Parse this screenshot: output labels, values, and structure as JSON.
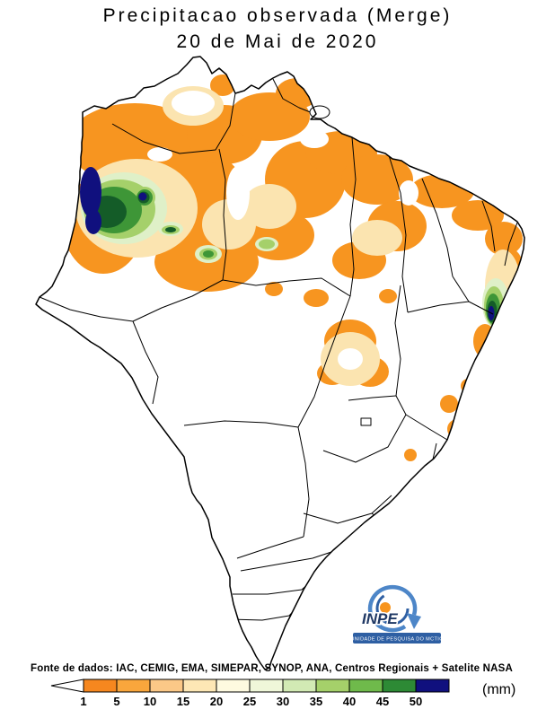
{
  "title": {
    "line1": "Precipitacao observada (Merge)",
    "line2": "20 de Mai de 2020"
  },
  "logo": {
    "name": "INPE",
    "subtitle": "UNIDADE DE PESQUISA DO MCTIC"
  },
  "source_line": "Fonte de dados: IAC, CEMIG, EMA, SIMEPAR, SYNOP, ANA, Centros Regionais + Satelite NASA",
  "legend": {
    "unit": "(mm)",
    "ticks": [
      "1",
      "5",
      "10",
      "15",
      "20",
      "25",
      "30",
      "35",
      "40",
      "45",
      "50"
    ],
    "colors": [
      "#F6871F",
      "#F9A63C",
      "#FBC887",
      "#FDE7B5",
      "#FEFAE0",
      "#EFF7D9",
      "#D2EAB4",
      "#A5D06A",
      "#6FBA4B",
      "#2D8A35",
      "#10107E"
    ]
  },
  "palette": {
    "orange": "#F79520",
    "cream": "#FBE4B0",
    "white": "#FFFFFF",
    "pale_green": "#DFF0C8",
    "light_green": "#A5D06A",
    "green": "#3E9637",
    "dark_green": "#145C28",
    "navy": "#10107E",
    "outline": "#000000",
    "logo_blue": "#2E5FA3",
    "logo_light_blue": "#4D86C8",
    "logo_orange": "#F7941E",
    "logo_dark": "#1F3864"
  }
}
